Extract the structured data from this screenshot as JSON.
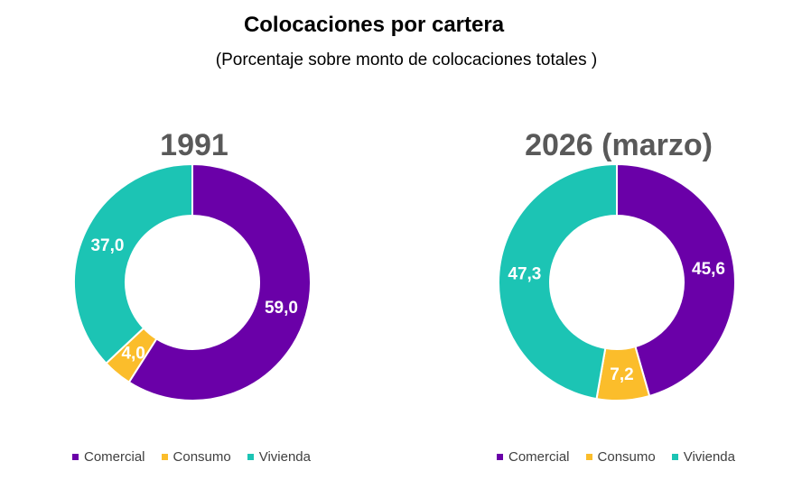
{
  "title": "Colocaciones por cartera",
  "subtitle": "(Porcentaje sobre monto de colocaciones totales )",
  "colors": {
    "Comercial": "#6a00a8",
    "Consumo": "#fbbd2b",
    "Vivienda": "#1cc4b4"
  },
  "chart_data": [
    {
      "type": "pie",
      "variant": "donut",
      "title": "1991",
      "categories": [
        "Comercial",
        "Consumo",
        "Vivienda"
      ],
      "values": [
        59.0,
        4.0,
        37.0
      ],
      "labels": [
        "59,0",
        "4,0",
        "37,0"
      ],
      "legend": [
        "Comercial",
        "Consumo",
        "Vivienda"
      ],
      "legend_position": "bottom"
    },
    {
      "type": "pie",
      "variant": "donut",
      "title": "2026 (marzo)",
      "categories": [
        "Comercial",
        "Consumo",
        "Vivienda"
      ],
      "values": [
        45.6,
        7.2,
        47.3
      ],
      "labels": [
        "45,6",
        "7,2",
        "47,3"
      ],
      "legend": [
        "Comercial",
        "Consumo",
        "Vivienda"
      ],
      "legend_position": "bottom"
    }
  ]
}
